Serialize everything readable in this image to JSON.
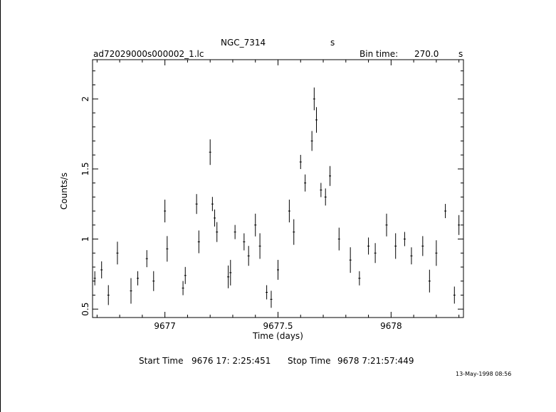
{
  "header": {
    "object_name": "NGC_7314",
    "object_unit": "s",
    "file_name": "ad72029000s000002_1.lc",
    "bin_time_label": "Bin time:",
    "bin_time_value": "270.0",
    "bin_time_unit": "s"
  },
  "footer": {
    "start_label": "Start Time",
    "start_value": "9676 17: 2:25:451",
    "stop_label": "Stop Time",
    "stop_value": "9678  7:21:57:449",
    "date_stamp": "13-May-1998 08:56"
  },
  "chart_data": {
    "type": "scatter",
    "title": "NGC_7314",
    "xlabel": "Time (days)",
    "ylabel": "Counts/s",
    "xlim": [
      9676.68,
      9678.32
    ],
    "ylim": [
      0.44,
      2.28
    ],
    "x_ticks": [
      9677,
      9677.5,
      9678
    ],
    "x_tick_labels": [
      "9677",
      "9677.5",
      "9678"
    ],
    "y_ticks": [
      0.5,
      1,
      1.5,
      2
    ],
    "y_tick_labels": [
      "0.5",
      "1",
      "1.5",
      "2"
    ],
    "grid": false,
    "error_bars": true,
    "series": [
      {
        "x": [
          9676.69,
          9676.72,
          9676.75,
          9676.79,
          9676.85,
          9676.88,
          9676.92,
          9676.95,
          9677.0,
          9677.01,
          9677.08,
          9677.09,
          9677.14,
          9677.15,
          9677.2,
          9677.21,
          9677.22,
          9677.23,
          9677.28,
          9677.29,
          9677.31,
          9677.35,
          9677.37,
          9677.4,
          9677.42,
          9677.45,
          9677.47,
          9677.5,
          9677.55,
          9677.57,
          9677.6,
          9677.62,
          9677.65,
          9677.66,
          9677.67,
          9677.69,
          9677.71,
          9677.73,
          9677.77,
          9677.82,
          9677.86,
          9677.9,
          9677.93,
          9677.98,
          9678.02,
          9678.06,
          9678.09,
          9678.14,
          9678.17,
          9678.2,
          9678.24,
          9678.28,
          9678.3
        ],
        "y": [
          0.72,
          0.78,
          0.6,
          0.9,
          0.63,
          0.72,
          0.86,
          0.7,
          1.2,
          0.93,
          0.65,
          0.74,
          1.25,
          0.98,
          1.62,
          1.25,
          1.15,
          1.05,
          0.73,
          0.76,
          1.05,
          0.98,
          0.88,
          1.1,
          0.95,
          0.62,
          0.57,
          0.78,
          1.2,
          1.05,
          1.55,
          1.4,
          1.7,
          2.0,
          1.85,
          1.35,
          1.3,
          1.45,
          1.0,
          0.85,
          0.72,
          0.95,
          0.9,
          1.1,
          0.95,
          1.0,
          0.88,
          0.95,
          0.7,
          0.9,
          1.2,
          0.6,
          1.1
        ]
      }
    ]
  }
}
